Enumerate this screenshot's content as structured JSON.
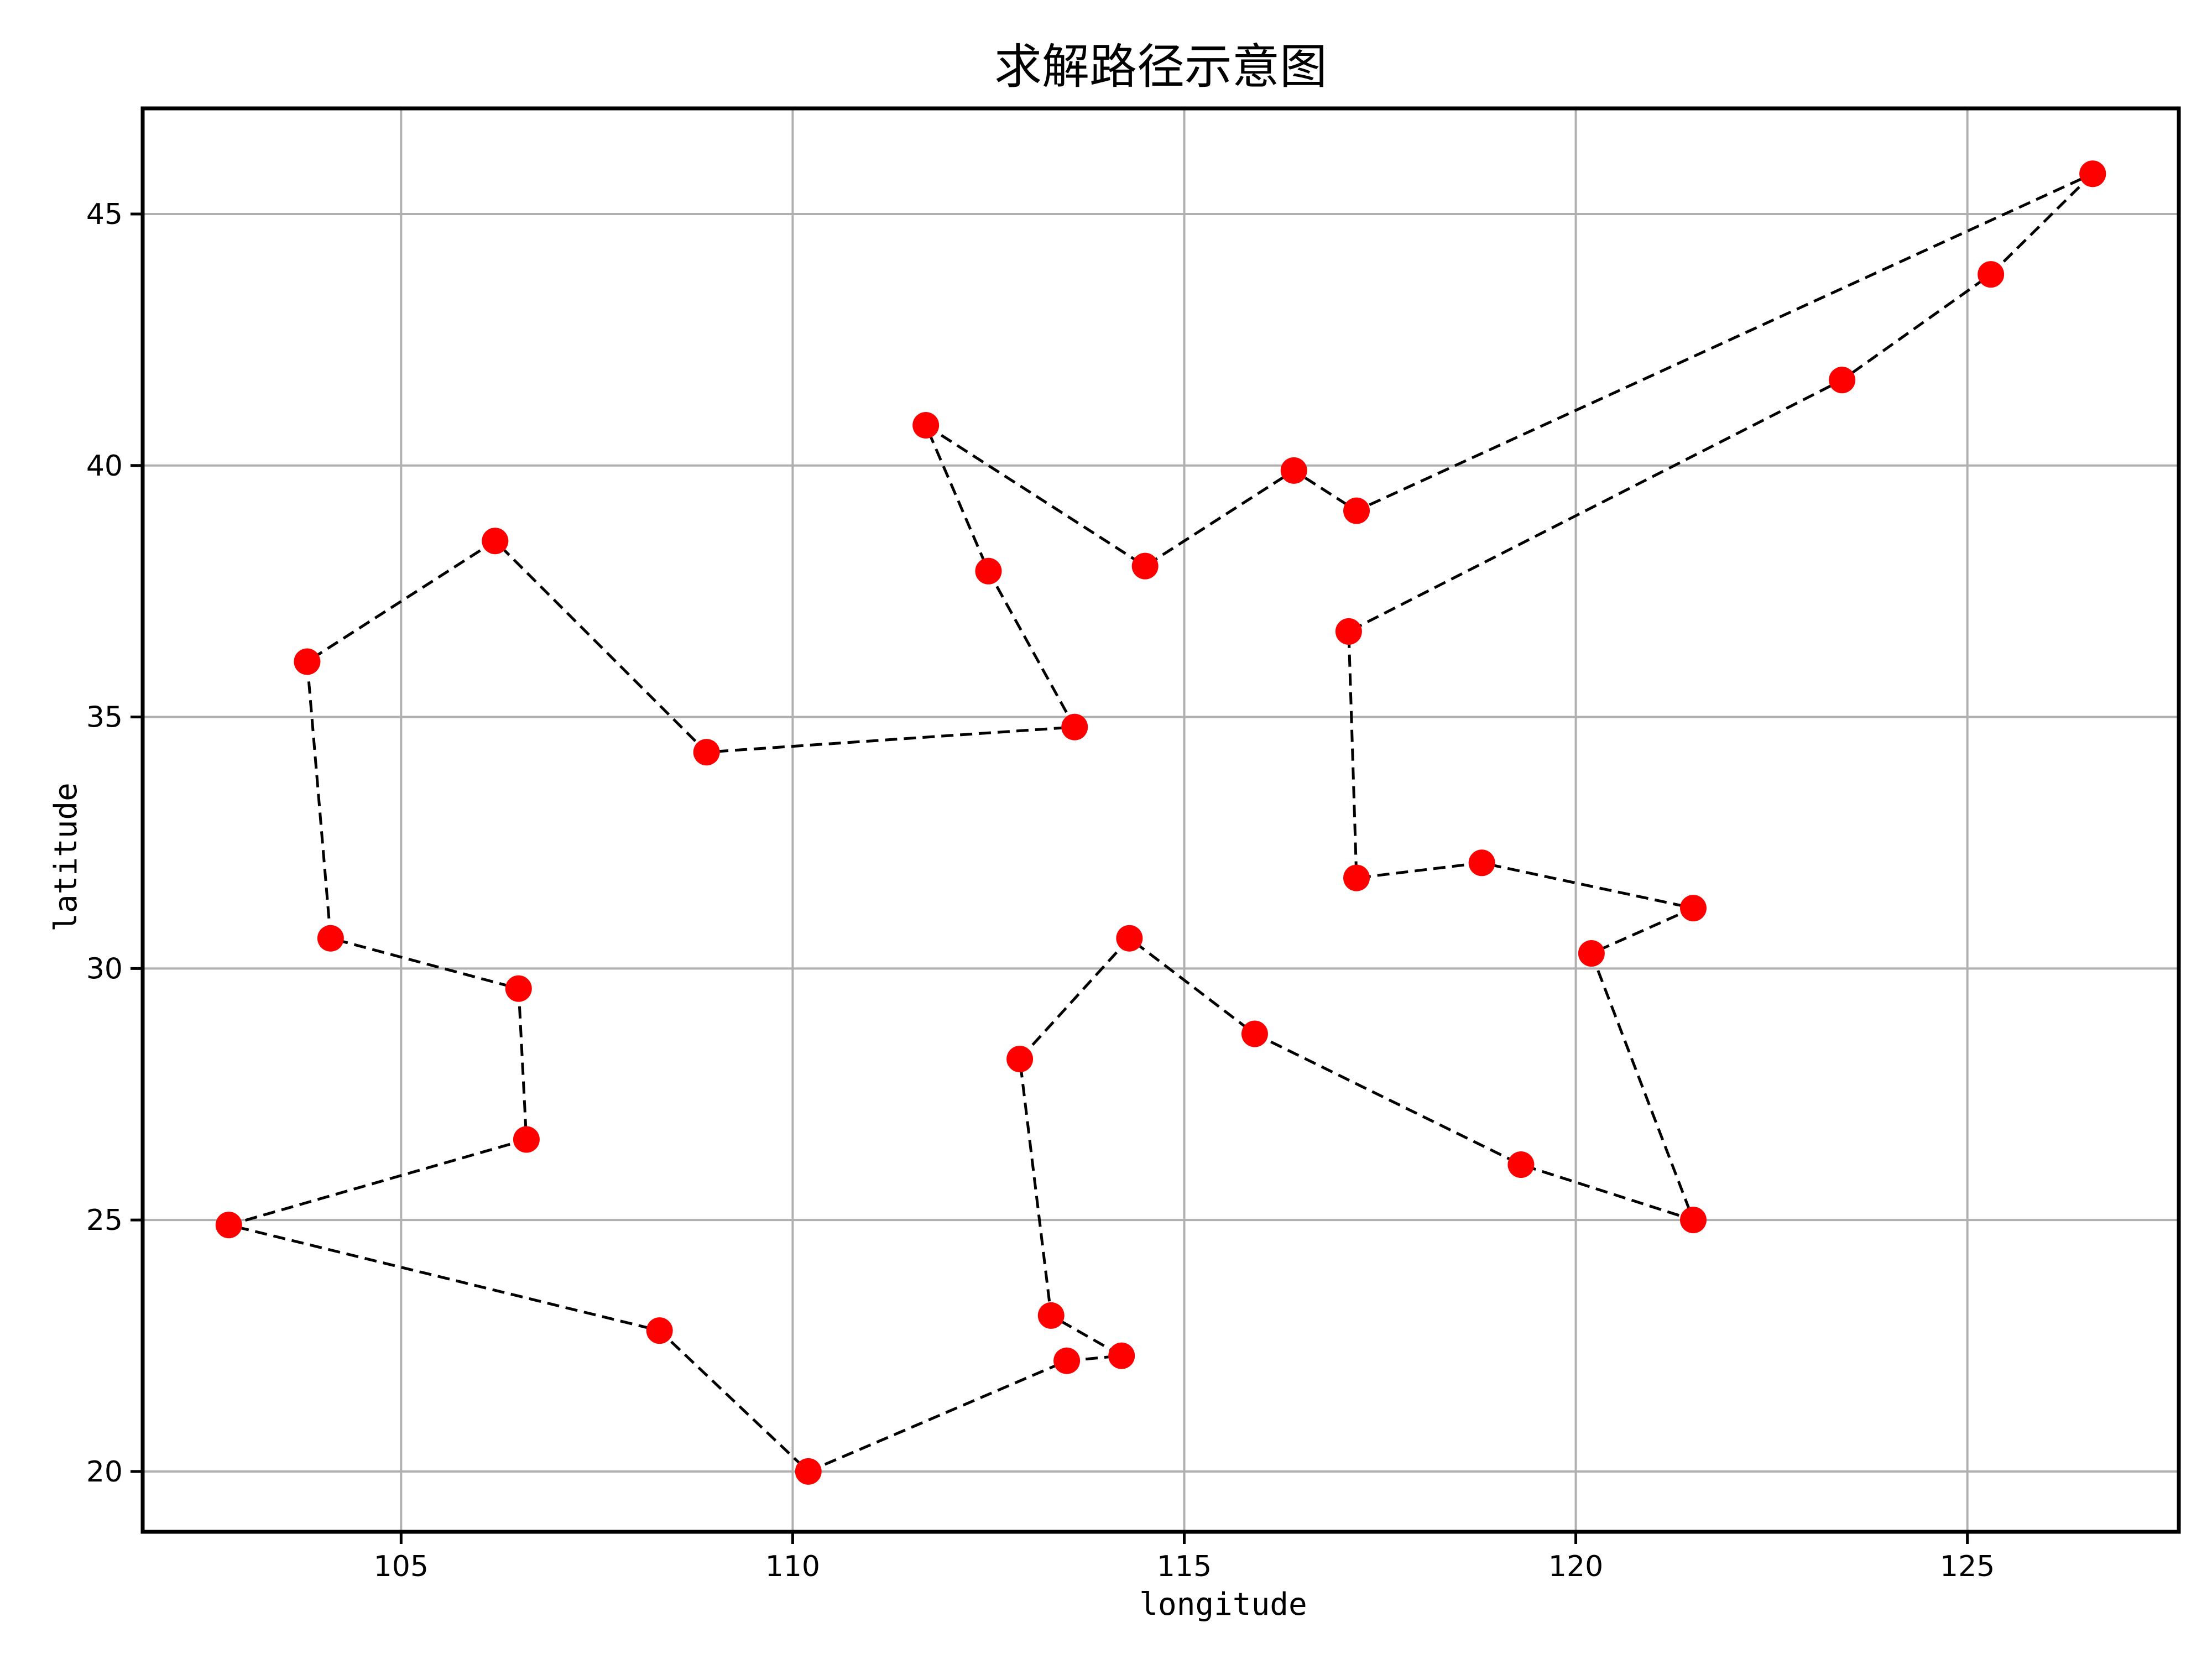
{
  "chart_data": {
    "type": "line",
    "title": "求解路径示意图",
    "xlabel": "longitude",
    "ylabel": "latitude",
    "xlim": [
      101.7,
      127.7
    ],
    "ylim": [
      18.8,
      47.1
    ],
    "xticks": [
      105,
      110,
      115,
      120,
      125
    ],
    "yticks": [
      20,
      25,
      30,
      35,
      40,
      45
    ],
    "grid": true,
    "line_style": "dashed",
    "line_color": "#000000",
    "marker_color": "#ff0000",
    "series": [
      {
        "x": [
          126.6,
          125.3,
          123.4,
          117.1,
          117.2,
          118.8,
          121.5,
          120.2,
          121.5,
          119.3,
          115.9,
          114.3,
          112.9,
          113.3,
          114.2,
          113.5,
          110.2,
          108.3,
          102.8,
          106.6,
          106.5,
          104.1,
          103.8,
          106.2,
          108.9,
          113.6,
          112.5,
          111.7,
          114.5,
          116.4,
          117.2,
          126.6
        ],
        "y": [
          45.8,
          43.8,
          41.7,
          36.7,
          31.8,
          32.1,
          31.2,
          30.3,
          25.0,
          26.1,
          28.7,
          30.6,
          28.2,
          23.1,
          22.3,
          22.2,
          20.0,
          22.8,
          24.9,
          26.6,
          29.6,
          30.6,
          36.1,
          38.5,
          34.3,
          34.8,
          37.9,
          40.8,
          38.0,
          39.9,
          39.1,
          45.8
        ]
      }
    ]
  }
}
